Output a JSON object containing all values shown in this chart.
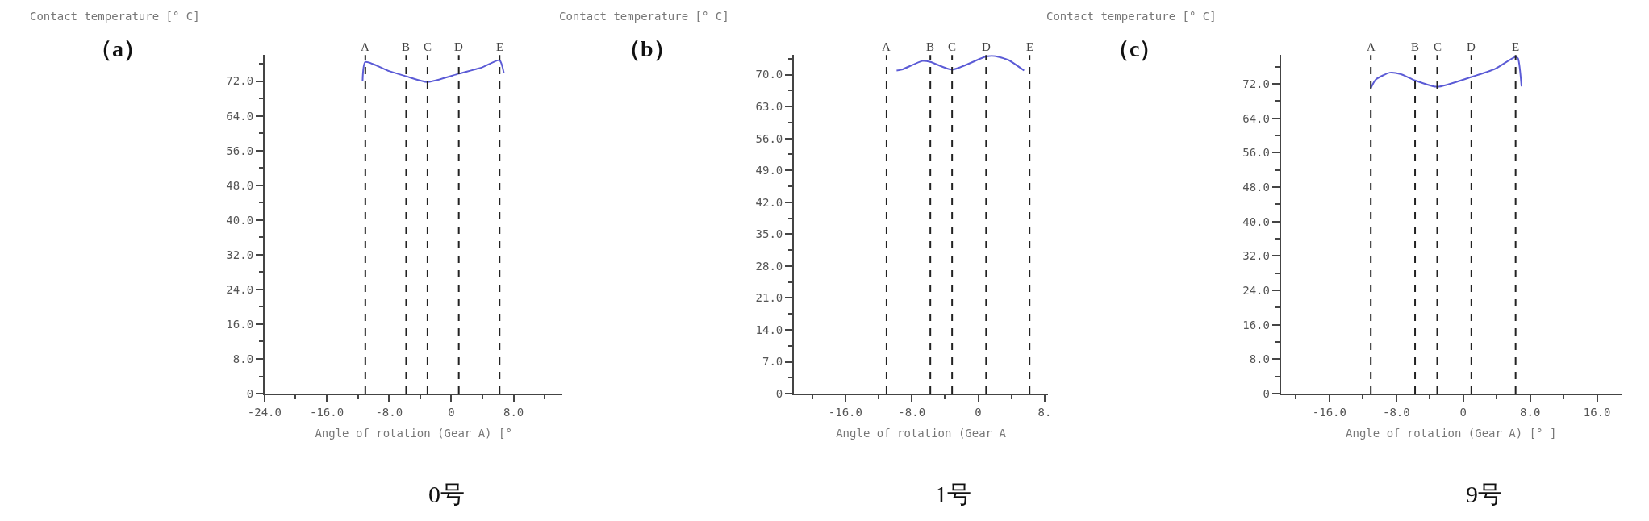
{
  "chart_data": [
    {
      "type": "line",
      "title": "（a）",
      "xlabel": "Angle of rotation (Gear A) [°",
      "ylabel": "Contact temperature [° C]",
      "annotations": [
        "0号"
      ],
      "series": [
        {
          "color": "#5b5bd6",
          "x": [
            -11.4,
            -11.05,
            -8.0,
            -5.8,
            -3.06,
            0.96,
            4.0,
            6.2,
            6.75
          ],
          "values": [
            72.0,
            76.4,
            74.3,
            73.1,
            71.8,
            73.7,
            75.2,
            76.8,
            73.9
          ]
        }
      ],
      "xlim": [
        -24,
        14.3
      ],
      "xticks": [
        {
          "value": -24,
          "label": "-24.0"
        },
        {
          "value": -16,
          "label": "-16.0"
        },
        {
          "value": -8,
          "label": "-8.0"
        },
        0,
        {
          "value": 8,
          "label": "8.0"
        }
      ],
      "ylim": [
        0,
        78
      ],
      "yticks": [
        0,
        {
          "value": 8,
          "label": "8.0"
        },
        {
          "value": 16,
          "label": "16.0"
        },
        {
          "value": 24,
          "label": "24.0"
        },
        {
          "value": 32,
          "label": "32.0"
        },
        {
          "value": 40,
          "label": "40.0"
        },
        {
          "value": 48,
          "label": "48.0"
        },
        {
          "value": 56,
          "label": "56.0"
        },
        {
          "value": 64,
          "label": "64.0"
        },
        {
          "value": 72,
          "label": "72.0"
        }
      ],
      "ref_lines": [
        {
          "axis": "x",
          "value": -11.05,
          "label": "A",
          "color": "#222222",
          "line_style": "dashed"
        },
        {
          "axis": "x",
          "value": -5.8,
          "label": "B",
          "color": "#222222",
          "line_style": "dashed"
        },
        {
          "axis": "x",
          "value": -3.06,
          "label": "C",
          "color": "#222222",
          "line_style": "dashed"
        },
        {
          "axis": "x",
          "value": 0.96,
          "label": "D",
          "color": "#222222",
          "line_style": "dashed"
        },
        {
          "axis": "x",
          "value": 6.2,
          "label": "E",
          "color": "#222222",
          "line_style": "dashed"
        }
      ],
      "marker": "none",
      "line_style": "solid"
    },
    {
      "type": "line",
      "title": "（b）",
      "xlabel": "Angle of rotation (Gear A",
      "ylabel": "Contact temperature [° C]",
      "annotations": [
        "1号"
      ],
      "series": [
        {
          "color": "#5b5bd6",
          "x": [
            -9.83,
            -9.21,
            -6.72,
            -5.77,
            -3.15,
            0.95,
            1.99,
            3.65,
            5.52
          ],
          "values": [
            70.9,
            71.1,
            73.0,
            72.8,
            71.1,
            74.0,
            74.1,
            73.2,
            70.9
          ]
        }
      ],
      "xlim": [
        -22.2,
        8.4
      ],
      "xticks": [
        {
          "value": -16,
          "label": "-16.0"
        },
        {
          "value": -8,
          "label": "-8.0"
        },
        0,
        {
          "value": 8,
          "label": "8."
        }
      ],
      "ylim": [
        0,
        74.3
      ],
      "yticks": [
        0,
        {
          "value": 7,
          "label": "7.0"
        },
        {
          "value": 14,
          "label": "14.0"
        },
        {
          "value": 21,
          "label": "21.0"
        },
        {
          "value": 28,
          "label": "28.0"
        },
        {
          "value": 35,
          "label": "35.0"
        },
        {
          "value": 42,
          "label": "42.0"
        },
        {
          "value": 49,
          "label": "49.0"
        },
        {
          "value": 56,
          "label": "56.0"
        },
        {
          "value": 63,
          "label": "63.0"
        },
        {
          "value": 70,
          "label": "70.0"
        }
      ],
      "ref_lines": [
        {
          "axis": "x",
          "value": -11.04,
          "label": "A",
          "color": "#222222",
          "line_style": "dashed"
        },
        {
          "axis": "x",
          "value": -5.77,
          "label": "B",
          "color": "#222222",
          "line_style": "dashed"
        },
        {
          "axis": "x",
          "value": -3.15,
          "label": "C",
          "color": "#222222",
          "line_style": "dashed"
        },
        {
          "axis": "x",
          "value": 0.95,
          "label": "D",
          "color": "#222222",
          "line_style": "dashed"
        },
        {
          "axis": "x",
          "value": 6.18,
          "label": "E",
          "color": "#222222",
          "line_style": "dashed"
        }
      ],
      "marker": "none",
      "line_style": "solid"
    },
    {
      "type": "line",
      "title": "（c）",
      "xlabel": "Angle of rotation (Gear A) [° ]",
      "ylabel": "Contact temperature [° C]",
      "annotations": [
        "9号"
      ],
      "series": [
        {
          "color": "#5b5bd6",
          "x": [
            -11.05,
            -10.46,
            -8.78,
            -7.52,
            -5.76,
            -3.11,
            0.97,
            3.82,
            6.26,
            6.55,
            6.97
          ],
          "values": [
            71.0,
            73.0,
            74.6,
            74.3,
            72.8,
            71.3,
            73.6,
            75.5,
            78.3,
            77.9,
            71.4
          ]
        }
      ],
      "xlim": [
        -21.8,
        18.9
      ],
      "xticks": [
        {
          "value": -16,
          "label": "-16.0"
        },
        {
          "value": -8,
          "label": "-8.0"
        },
        0,
        {
          "value": 8,
          "label": "8.0"
        },
        {
          "value": 16,
          "label": "16.0"
        }
      ],
      "ylim": [
        0,
        78.7
      ],
      "yticks": [
        0,
        {
          "value": 8,
          "label": "8.0"
        },
        {
          "value": 16,
          "label": "16.0"
        },
        {
          "value": 24,
          "label": "24.0"
        },
        {
          "value": 32,
          "label": "32.0"
        },
        {
          "value": 40,
          "label": "40.0"
        },
        {
          "value": 48,
          "label": "48.0"
        },
        {
          "value": 56,
          "label": "56.0"
        },
        {
          "value": 64,
          "label": "64.0"
        },
        {
          "value": 72,
          "label": "72.0"
        }
      ],
      "ref_lines": [
        {
          "axis": "x",
          "value": -11.05,
          "label": "A",
          "color": "#222222",
          "line_style": "dashed"
        },
        {
          "axis": "x",
          "value": -5.76,
          "label": "B",
          "color": "#222222",
          "line_style": "dashed"
        },
        {
          "axis": "x",
          "value": -3.11,
          "label": "C",
          "color": "#222222",
          "line_style": "dashed"
        },
        {
          "axis": "x",
          "value": 0.97,
          "label": "D",
          "color": "#222222",
          "line_style": "dashed"
        },
        {
          "axis": "x",
          "value": 6.26,
          "label": "E",
          "color": "#222222",
          "line_style": "dashed"
        }
      ],
      "marker": "none",
      "line_style": "solid"
    }
  ]
}
